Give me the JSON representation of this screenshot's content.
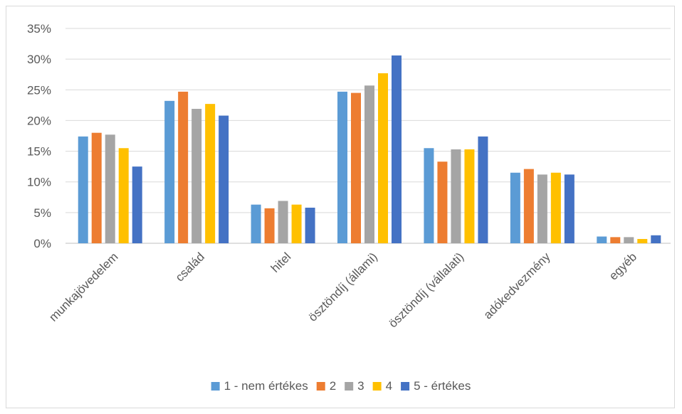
{
  "chart_data": {
    "type": "bar",
    "categories": [
      "munkajövedelem",
      "család",
      "hitel",
      "ösztöndíj (állami)",
      "ösztöndíj (vállalati)",
      "adókedvezmény",
      "egyéb"
    ],
    "series": [
      {
        "name": "1 - nem értékes",
        "color": "#5B9BD5",
        "values": [
          17.4,
          23.2,
          6.3,
          24.7,
          15.5,
          11.5,
          1.1
        ]
      },
      {
        "name": "2",
        "color": "#ED7D31",
        "values": [
          18.0,
          24.7,
          5.7,
          24.5,
          13.3,
          12.1,
          1.0
        ]
      },
      {
        "name": "3",
        "color": "#A5A5A5",
        "values": [
          17.7,
          21.9,
          6.9,
          25.7,
          15.3,
          11.2,
          1.0
        ]
      },
      {
        "name": "4",
        "color": "#FFC000",
        "values": [
          15.5,
          22.7,
          6.3,
          27.7,
          15.3,
          11.5,
          0.7
        ]
      },
      {
        "name": "5 - értékes",
        "color": "#4472C4",
        "values": [
          12.5,
          20.8,
          5.8,
          30.6,
          17.4,
          11.2,
          1.3
        ]
      }
    ],
    "y_ticks": [
      "0%",
      "5%",
      "10%",
      "15%",
      "20%",
      "25%",
      "30%",
      "35%"
    ],
    "ylim": [
      0,
      35
    ],
    "grid": true,
    "legend_position": "bottom",
    "gridline_color": "#d9d9d9",
    "axis_color": "#bfbfbf"
  }
}
